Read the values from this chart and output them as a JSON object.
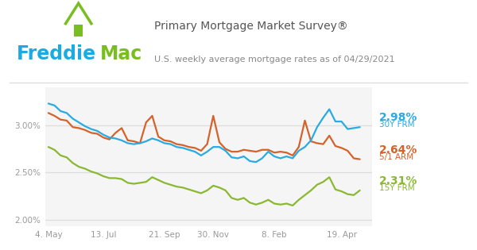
{
  "title": "Primary Mortgage Market Survey®",
  "subtitle": "U.S. weekly average mortgage rates as of 04/29/2021",
  "freddie_blue": "#1AABE2",
  "freddie_green": "#78BE20",
  "line_30y_color": "#29ABE2",
  "line_15y_color": "#8AB833",
  "line_arm_color": "#D4622A",
  "label_30y": "2.98%",
  "label_30y_sub": "30Y FRM",
  "label_arm": "2.64%",
  "label_arm_sub": "5/1 ARM",
  "label_15y": "2.31%",
  "label_15y_sub": "15Y FRM",
  "bg_color": "#FFFFFF",
  "plot_bg": "#F5F5F5",
  "grid_color": "#DDDDDD",
  "title_color": "#555555",
  "subtitle_color": "#888888",
  "tick_color": "#999999",
  "xtick_labels": [
    "4. May",
    "13. Jul",
    "21. Sep",
    "30. Nov",
    "8. Feb",
    "19. Apr"
  ],
  "ytick_labels": [
    "2.00%",
    "2.50%",
    "3.00%"
  ],
  "ylim": [
    1.93,
    3.4
  ],
  "xlim": [
    -0.5,
    53
  ],
  "xtick_positions": [
    0,
    9,
    19,
    27,
    37,
    48
  ],
  "y_30y": [
    3.23,
    3.21,
    3.15,
    3.13,
    3.07,
    3.03,
    2.99,
    2.96,
    2.94,
    2.9,
    2.87,
    2.86,
    2.84,
    2.81,
    2.8,
    2.81,
    2.83,
    2.86,
    2.84,
    2.81,
    2.8,
    2.77,
    2.76,
    2.74,
    2.72,
    2.68,
    2.72,
    2.77,
    2.77,
    2.73,
    2.66,
    2.65,
    2.67,
    2.62,
    2.61,
    2.65,
    2.72,
    2.67,
    2.65,
    2.67,
    2.65,
    2.73,
    2.77,
    2.84,
    2.98,
    3.08,
    3.17,
    3.04,
    3.04,
    2.96,
    2.97,
    2.98
  ],
  "y_arm": [
    3.13,
    3.1,
    3.06,
    3.05,
    2.98,
    2.97,
    2.95,
    2.92,
    2.91,
    2.87,
    2.85,
    2.92,
    2.97,
    2.84,
    2.83,
    2.81,
    3.03,
    3.1,
    2.88,
    2.84,
    2.83,
    2.8,
    2.79,
    2.77,
    2.76,
    2.73,
    2.8,
    3.1,
    2.82,
    2.75,
    2.72,
    2.72,
    2.74,
    2.73,
    2.72,
    2.74,
    2.74,
    2.71,
    2.72,
    2.71,
    2.68,
    2.77,
    3.05,
    2.83,
    2.81,
    2.8,
    2.89,
    2.78,
    2.76,
    2.73,
    2.65,
    2.64
  ],
  "y_15y": [
    2.77,
    2.74,
    2.68,
    2.66,
    2.6,
    2.56,
    2.54,
    2.51,
    2.49,
    2.46,
    2.44,
    2.44,
    2.43,
    2.39,
    2.38,
    2.39,
    2.4,
    2.45,
    2.42,
    2.39,
    2.37,
    2.35,
    2.34,
    2.32,
    2.3,
    2.28,
    2.31,
    2.36,
    2.34,
    2.31,
    2.23,
    2.21,
    2.23,
    2.18,
    2.16,
    2.18,
    2.21,
    2.17,
    2.16,
    2.17,
    2.15,
    2.21,
    2.26,
    2.31,
    2.37,
    2.4,
    2.45,
    2.32,
    2.3,
    2.27,
    2.26,
    2.31
  ]
}
